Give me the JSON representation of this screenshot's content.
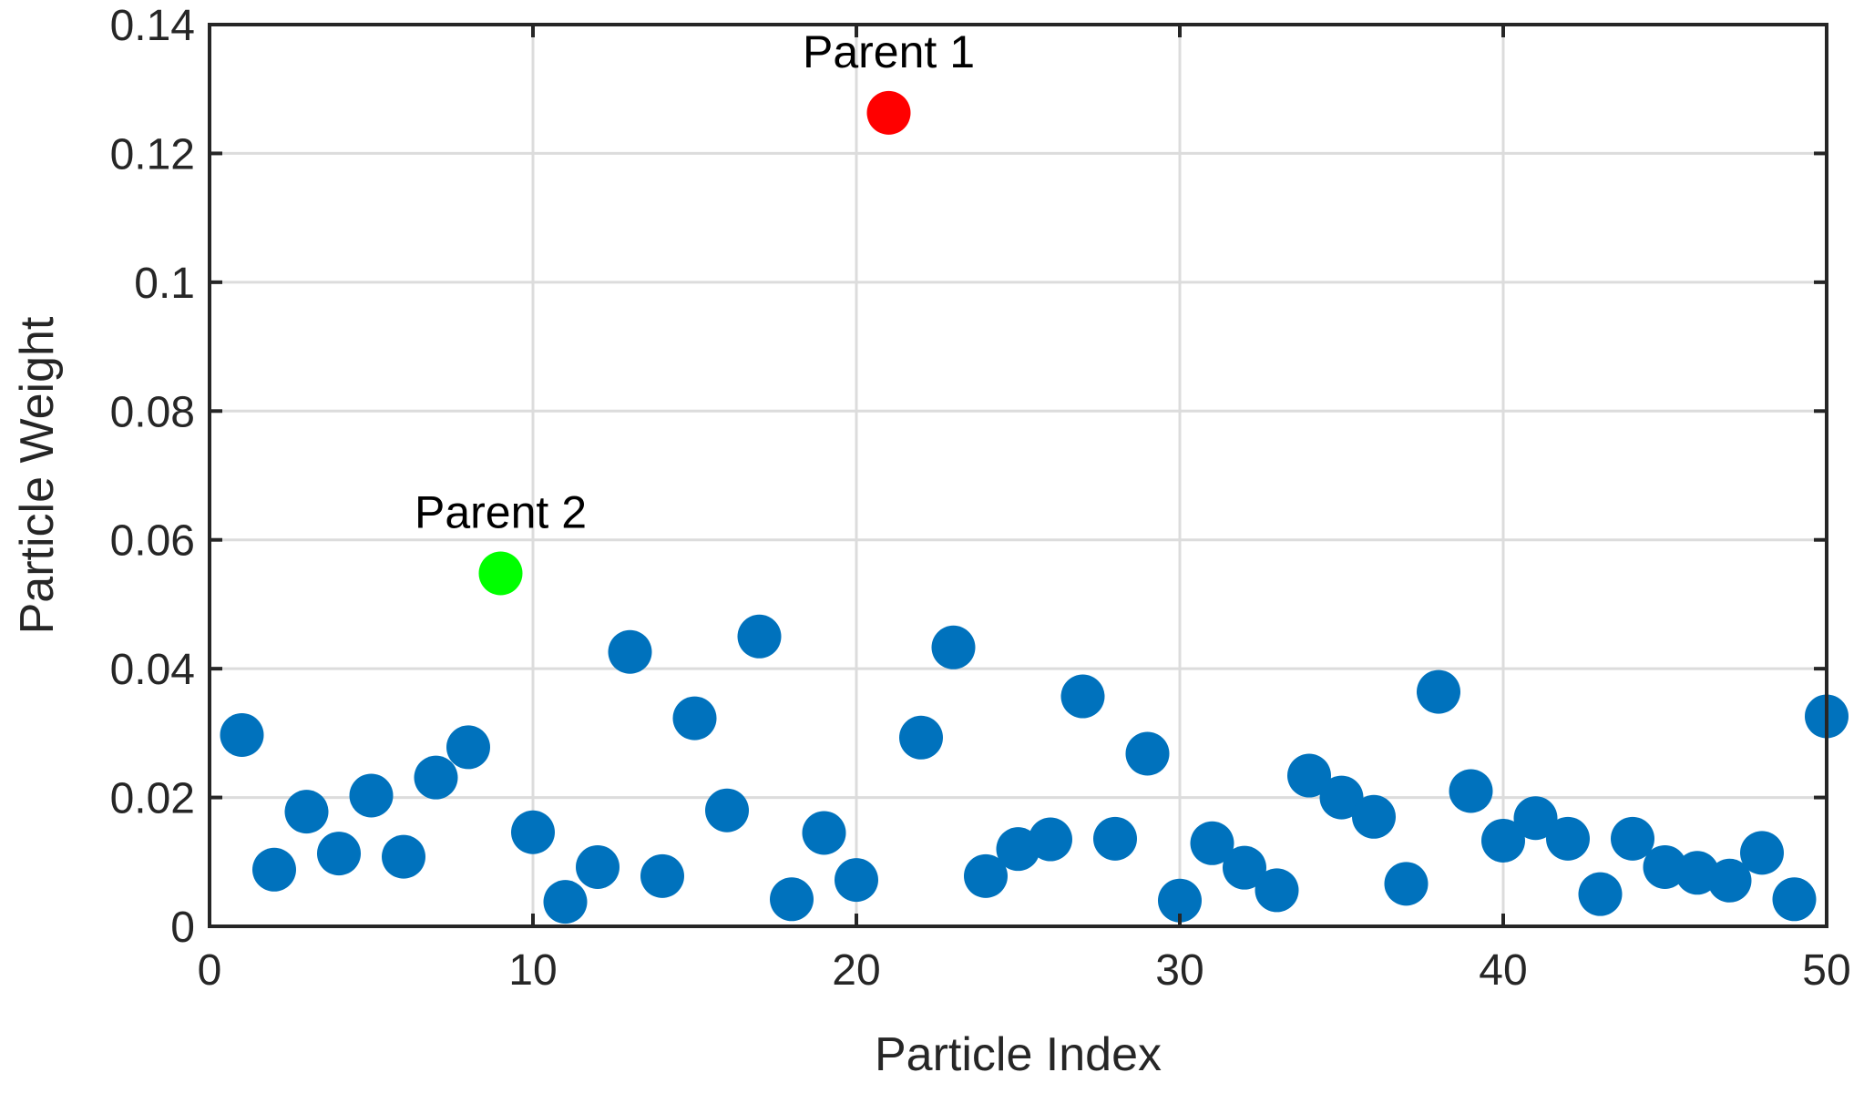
{
  "chart_data": {
    "type": "scatter",
    "xlabel": "Particle Index",
    "ylabel": "Particle Weight",
    "xlim": [
      0,
      50
    ],
    "ylim": [
      0,
      0.14
    ],
    "xticks": [
      0,
      10,
      20,
      30,
      40,
      50
    ],
    "xtick_labels": [
      "0",
      "10",
      "20",
      "30",
      "40",
      "50"
    ],
    "yticks": [
      0,
      0.02,
      0.04,
      0.06,
      0.08,
      0.1,
      0.12,
      0.14
    ],
    "ytick_labels": [
      "0",
      "0.02",
      "0.04",
      "0.06",
      "0.08",
      "0.1",
      "0.12",
      "0.14"
    ],
    "grid": true,
    "series": [
      {
        "color": "#0072BD",
        "x": [
          1,
          2,
          3,
          4,
          5,
          6,
          7,
          8,
          10,
          11,
          12,
          13,
          14,
          15,
          16,
          17,
          18,
          19,
          20,
          22,
          23,
          24,
          25,
          26,
          27,
          28,
          29,
          30,
          31,
          32,
          33,
          34,
          35,
          36,
          37,
          38,
          39,
          40,
          41,
          42,
          43,
          44,
          45,
          46,
          47,
          48,
          49,
          50
        ],
        "y": [
          0.0297,
          0.0088,
          0.0178,
          0.0113,
          0.0203,
          0.0108,
          0.0231,
          0.0278,
          0.0146,
          0.0038,
          0.0092,
          0.0426,
          0.0078,
          0.0323,
          0.018,
          0.045,
          0.0042,
          0.0145,
          0.0072,
          0.0293,
          0.0433,
          0.0078,
          0.012,
          0.0135,
          0.0357,
          0.0136,
          0.0268,
          0.004,
          0.0129,
          0.0091,
          0.0056,
          0.0234,
          0.02,
          0.017,
          0.0066,
          0.0364,
          0.021,
          0.0133,
          0.0168,
          0.0136,
          0.005,
          0.0136,
          0.0092,
          0.0083,
          0.0071,
          0.0114,
          0.0042,
          0.0326
        ]
      },
      {
        "color": "#FF0000",
        "x": [
          21
        ],
        "y": [
          0.1263
        ]
      },
      {
        "color": "#00FF00",
        "x": [
          9
        ],
        "y": [
          0.0548
        ]
      }
    ],
    "annotations": [
      {
        "text": "Parent 1",
        "x": 21,
        "y": 0.1263
      },
      {
        "text": "Parent 2",
        "x": 9,
        "y": 0.0548
      }
    ]
  }
}
